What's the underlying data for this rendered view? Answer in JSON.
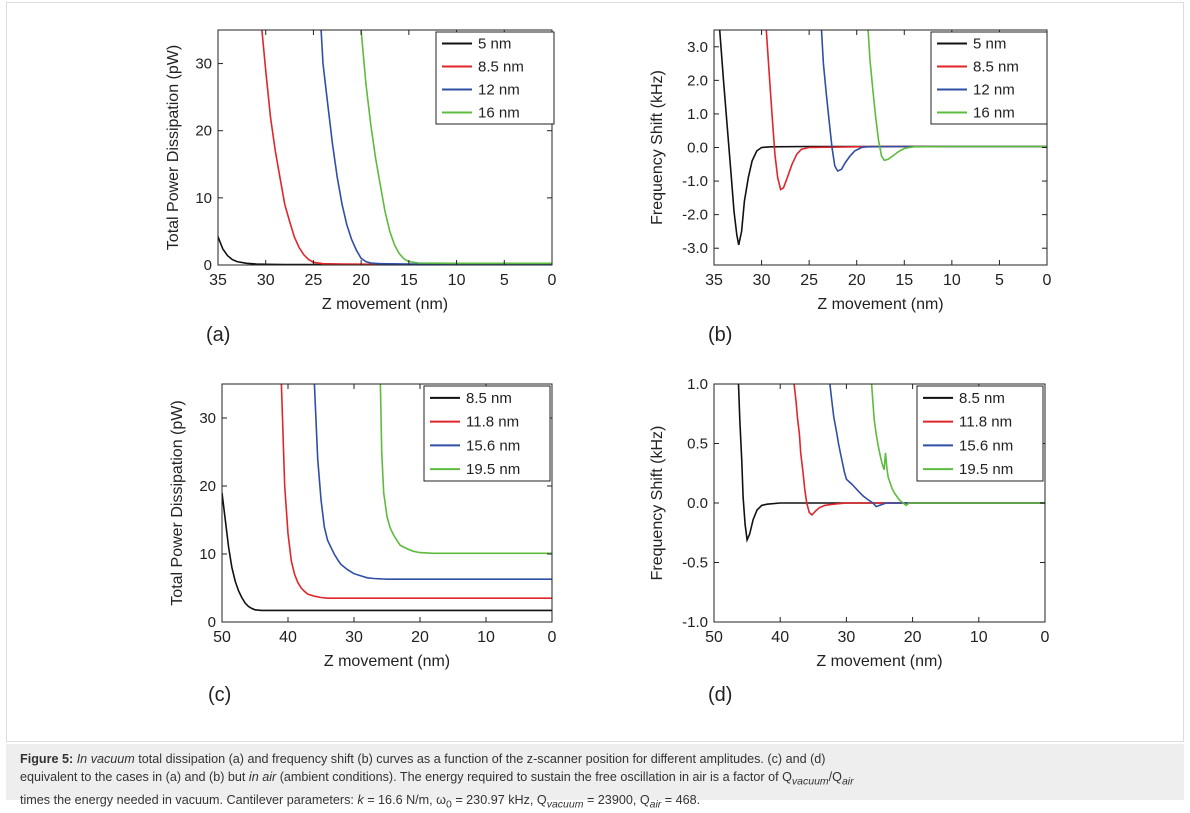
{
  "caption": {
    "label": "Figure 5:",
    "p1_italic": "In vacuum",
    "p1": " total dissipation (a) and frequency shift (b) curves as a function of the z-scanner position for different amplitudes. (c) and (d)",
    "p2a": "equivalent to the cases in (a) and (b) but ",
    "p2_italic": "in air",
    "p2b": " (ambient conditions). The energy required to sustain the free oscillation in air is a factor of Q",
    "p2_sub1": "vacuum",
    "p2_mid": "/Q",
    "p2_sub2": "air",
    "p3a": "times the energy needed in vacuum. Cantilever parameters: ",
    "p3_k": "k",
    "p3b": " = 16.6 N/m, ω",
    "p3_sub0": "0",
    "p3c": " = 230.97 kHz, Q",
    "p3_sub3": "vacuum",
    "p3d": " = 23900, Q",
    "p3_sub4": "air",
    "p3e": " = 468."
  },
  "colors": {
    "black": "#111111",
    "red": "#e0262b",
    "blue": "#2f4fa6",
    "green": "#5dbb3d"
  },
  "chart_data": [
    {
      "id": "a",
      "panel_label": "(a)",
      "type": "line",
      "xlabel": "Z movement (nm)",
      "ylabel": "Total Power Dissipation  (pW)",
      "xlim": [
        35,
        0
      ],
      "ylim": [
        0,
        35
      ],
      "xticks": [
        "35",
        "30",
        "25",
        "20",
        "15",
        "10",
        "5",
        "0"
      ],
      "xtick_values": [
        35,
        30,
        25,
        20,
        15,
        10,
        5,
        0
      ],
      "yticks": [
        "0",
        "10",
        "20",
        "30"
      ],
      "ytick_values": [
        0,
        10,
        20,
        30
      ],
      "legend": "top-right",
      "series": [
        {
          "name": "5 nm",
          "color": "black",
          "x": [
            35.2,
            35,
            34.5,
            34,
            33.5,
            33,
            32,
            31,
            30,
            28,
            25,
            20,
            15,
            10,
            5,
            0
          ],
          "y": [
            5.2,
            4.2,
            2.4,
            1.4,
            0.8,
            0.5,
            0.25,
            0.15,
            0.1,
            0.08,
            0.06,
            0.05,
            0.05,
            0.05,
            0.05,
            0.05
          ]
        },
        {
          "name": "8.5 nm",
          "color": "red",
          "x": [
            30.4,
            30,
            29.5,
            29,
            28.5,
            28,
            27.5,
            27,
            26.5,
            26,
            25.5,
            25,
            24,
            22,
            20,
            15,
            10,
            5,
            0
          ],
          "y": [
            35,
            29,
            22,
            17,
            13,
            9,
            6.5,
            4.2,
            2.6,
            1.5,
            0.8,
            0.4,
            0.2,
            0.15,
            0.12,
            0.1,
            0.1,
            0.1,
            0.1
          ]
        },
        {
          "name": "12 nm",
          "color": "blue",
          "x": [
            24.2,
            24,
            23.5,
            23,
            22.5,
            22,
            21.5,
            21,
            20.5,
            20,
            19.5,
            19,
            18,
            15,
            10,
            5,
            0
          ],
          "y": [
            35,
            30,
            24,
            18,
            13,
            9,
            6,
            3.8,
            2.2,
            1.0,
            0.5,
            0.3,
            0.2,
            0.15,
            0.15,
            0.15,
            0.15
          ]
        },
        {
          "name": "16 nm",
          "color": "green",
          "x": [
            20,
            19.5,
            19,
            18.5,
            18,
            17.5,
            17,
            16.5,
            16,
            15.5,
            15,
            14,
            10,
            5,
            0
          ],
          "y": [
            35,
            27,
            21,
            16,
            12,
            8,
            5,
            3,
            1.7,
            0.9,
            0.5,
            0.3,
            0.25,
            0.25,
            0.25
          ]
        }
      ]
    },
    {
      "id": "b",
      "panel_label": "(b)",
      "type": "line",
      "xlabel": "Z movement (nm)",
      "ylabel": "Frequency Shift (kHz)",
      "xlim": [
        35,
        0
      ],
      "ylim": [
        -3.5,
        3.5
      ],
      "xticks": [
        "35",
        "30",
        "25",
        "20",
        "15",
        "10",
        "5",
        "0"
      ],
      "xtick_values": [
        35,
        30,
        25,
        20,
        15,
        10,
        5,
        0
      ],
      "yticks": [
        "-3.0",
        "-2.0",
        "-1.0",
        "0.0",
        "1.0",
        "2.0",
        "3.0"
      ],
      "ytick_values": [
        -3,
        -2,
        -1,
        0,
        1,
        2,
        3
      ],
      "legend": "top-right",
      "series": [
        {
          "name": "5 nm",
          "color": "black",
          "x": [
            34.4,
            34,
            33.6,
            33.2,
            32.9,
            32.6,
            32.4,
            32.1,
            31.8,
            31.4,
            31,
            30.5,
            30,
            29,
            25,
            20,
            15,
            10,
            5,
            0
          ],
          "y": [
            3.5,
            2.0,
            0.6,
            -0.8,
            -1.9,
            -2.6,
            -2.9,
            -2.5,
            -1.6,
            -0.9,
            -0.4,
            -0.1,
            0.0,
            0.02,
            0.03,
            0.03,
            0.03,
            0.03,
            0.03,
            0.03
          ]
        },
        {
          "name": "8.5 nm",
          "color": "red",
          "x": [
            29.5,
            29.2,
            28.9,
            28.6,
            28.3,
            28.0,
            27.7,
            27.3,
            26.8,
            26.3,
            25.8,
            25,
            20,
            15,
            10,
            5,
            0
          ],
          "y": [
            3.5,
            2.2,
            1.0,
            -0.2,
            -0.9,
            -1.25,
            -1.2,
            -0.9,
            -0.5,
            -0.2,
            -0.05,
            0.0,
            0.02,
            0.03,
            0.03,
            0.03,
            0.03
          ]
        },
        {
          "name": "12 nm",
          "color": "blue",
          "x": [
            23.7,
            23.5,
            23.2,
            22.9,
            22.6,
            22.3,
            22.0,
            21.6,
            21.2,
            20.7,
            20.2,
            19.5,
            19,
            15,
            10,
            5,
            0
          ],
          "y": [
            3.5,
            2.5,
            1.6,
            0.8,
            0.0,
            -0.55,
            -0.7,
            -0.65,
            -0.45,
            -0.25,
            -0.1,
            0.0,
            0.02,
            0.03,
            0.03,
            0.03,
            0.03
          ]
        },
        {
          "name": "16 nm",
          "color": "green",
          "x": [
            18.8,
            18.6,
            18.3,
            18.0,
            17.7,
            17.4,
            17.1,
            16.7,
            16.2,
            15.6,
            15,
            14.5,
            14,
            10,
            5,
            0
          ],
          "y": [
            3.5,
            2.6,
            1.7,
            0.9,
            0.2,
            -0.25,
            -0.38,
            -0.35,
            -0.25,
            -0.12,
            -0.03,
            0.0,
            0.02,
            0.03,
            0.03,
            0.03
          ]
        }
      ]
    },
    {
      "id": "c",
      "panel_label": "(c)",
      "type": "line",
      "xlabel": "Z movement (nm)",
      "ylabel": "Total Power Dissipation  (pW)",
      "xlim": [
        50,
        0
      ],
      "ylim": [
        0,
        35
      ],
      "xticks": [
        "50",
        "40",
        "30",
        "20",
        "10",
        "0"
      ],
      "xtick_values": [
        50,
        40,
        30,
        20,
        10,
        0
      ],
      "yticks": [
        "0",
        "10",
        "20",
        "30"
      ],
      "ytick_values": [
        0,
        10,
        20,
        30
      ],
      "legend": "top-right",
      "series": [
        {
          "name": "8.5 nm",
          "color": "black",
          "x": [
            50,
            49.5,
            49,
            48.5,
            48,
            47.5,
            47,
            46.5,
            46,
            45.5,
            45,
            44,
            40,
            30,
            20,
            10,
            0
          ],
          "y": [
            19,
            15,
            11,
            8,
            6,
            4.6,
            3.6,
            2.8,
            2.3,
            2.0,
            1.8,
            1.7,
            1.7,
            1.7,
            1.7,
            1.7,
            1.7
          ]
        },
        {
          "name": "11.8 nm",
          "color": "red",
          "x": [
            41,
            40.5,
            40,
            39.5,
            39,
            38.5,
            38,
            37.5,
            37,
            36,
            35,
            34,
            33,
            30,
            20,
            10,
            0
          ],
          "y": [
            35,
            20,
            13,
            9,
            7,
            5.8,
            5,
            4.5,
            4.1,
            3.8,
            3.6,
            3.5,
            3.5,
            3.5,
            3.5,
            3.5,
            3.5
          ]
        },
        {
          "name": "15.6 nm",
          "color": "blue",
          "x": [
            36,
            35.5,
            35,
            34.5,
            34,
            33.5,
            33,
            32.5,
            32,
            31,
            30,
            29,
            28,
            27,
            25,
            20,
            10,
            0
          ],
          "y": [
            35,
            24,
            18,
            14,
            12,
            11,
            10,
            9.2,
            8.5,
            7.7,
            7.1,
            6.8,
            6.5,
            6.4,
            6.3,
            6.3,
            6.3,
            6.3
          ]
        },
        {
          "name": "19.5 nm",
          "color": "green",
          "x": [
            26,
            25.8,
            25.5,
            25,
            24.5,
            24,
            23.5,
            23,
            22,
            21,
            20,
            18,
            15,
            10,
            0
          ],
          "y": [
            35,
            25,
            19,
            15.5,
            13.8,
            12.8,
            12,
            11.3,
            10.8,
            10.4,
            10.2,
            10.1,
            10.1,
            10.1,
            10.1
          ]
        }
      ]
    },
    {
      "id": "d",
      "panel_label": "(d)",
      "type": "line",
      "xlabel": "Z movement (nm)",
      "ylabel": "Frequency Shift (kHz)",
      "xlim": [
        50,
        0
      ],
      "ylim": [
        -1.0,
        1.0
      ],
      "xticks": [
        "50",
        "40",
        "30",
        "20",
        "10",
        "0"
      ],
      "xtick_values": [
        50,
        40,
        30,
        20,
        10,
        0
      ],
      "yticks": [
        "-1.0",
        "-0.5",
        "0.0",
        "0.5",
        "1.0"
      ],
      "ytick_values": [
        -1,
        -0.5,
        0,
        0.5,
        1
      ],
      "legend": "top-right",
      "series": [
        {
          "name": "8.5 nm",
          "color": "black",
          "x": [
            46.3,
            46.1,
            45.8,
            45.6,
            45.3,
            45.0,
            44.6,
            44.1,
            43.5,
            42.8,
            42,
            40,
            30,
            20,
            10,
            0
          ],
          "y": [
            1.0,
            0.7,
            0.35,
            0.05,
            -0.18,
            -0.31,
            -0.26,
            -0.14,
            -0.06,
            -0.02,
            -0.01,
            0.0,
            0.0,
            0.0,
            0.0,
            0.0
          ]
        },
        {
          "name": "11.8 nm",
          "color": "red",
          "x": [
            37.9,
            37.6,
            37.4,
            37.1,
            36.9,
            36.6,
            36.3,
            36.0,
            35.6,
            35.2,
            34.7,
            34.1,
            33.3,
            32,
            30,
            20,
            10,
            0
          ],
          "y": [
            1.0,
            0.85,
            0.72,
            0.58,
            0.42,
            0.28,
            0.12,
            0.0,
            -0.08,
            -0.1,
            -0.07,
            -0.04,
            -0.02,
            -0.01,
            0.0,
            0.0,
            0.0,
            0.0
          ]
        },
        {
          "name": "15.6 nm",
          "color": "blue",
          "x": [
            32.5,
            32.2,
            31.9,
            31.5,
            31.2,
            30.9,
            30.6,
            30.3,
            30.0,
            29.6,
            29.2,
            28.7,
            28.2,
            27.5,
            26.8,
            26,
            25.5,
            25,
            24,
            20,
            10,
            0
          ],
          "y": [
            1.0,
            0.86,
            0.72,
            0.6,
            0.5,
            0.42,
            0.34,
            0.26,
            0.2,
            0.18,
            0.16,
            0.13,
            0.1,
            0.06,
            0.03,
            0.0,
            -0.03,
            -0.02,
            0.0,
            0.0,
            0.0,
            0.0
          ]
        },
        {
          "name": "19.5 nm",
          "color": "green",
          "x": [
            26.2,
            26.0,
            25.8,
            25.5,
            25.2,
            24.9,
            24.6,
            24.3,
            24.1,
            23.9,
            23.7,
            23.4,
            23.1,
            22.7,
            22.3,
            21.9,
            21.4,
            21,
            20.5,
            20,
            19.5,
            15,
            10,
            0
          ],
          "y": [
            1.0,
            0.85,
            0.7,
            0.58,
            0.48,
            0.4,
            0.33,
            0.28,
            0.42,
            0.3,
            0.22,
            0.17,
            0.12,
            0.08,
            0.05,
            0.02,
            0.0,
            -0.02,
            0.0,
            0.0,
            0.0,
            0.0,
            0.0,
            0.0
          ]
        }
      ]
    }
  ]
}
